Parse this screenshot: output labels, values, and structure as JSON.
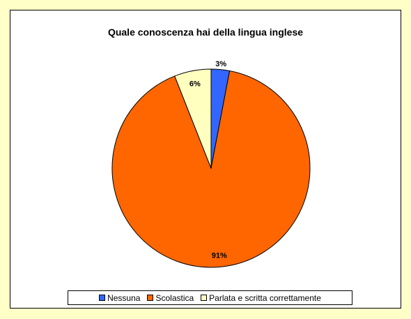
{
  "chart_data": {
    "type": "pie",
    "title": "Quale conoscenza hai della lingua inglese",
    "categories": [
      "Nessuna",
      "Scolastica",
      "Parlata e scritta correttamente"
    ],
    "values": [
      3,
      91,
      6
    ],
    "labels": [
      "3%",
      "91%",
      "6%"
    ],
    "colors": [
      "#3366ff",
      "#ff6600",
      "#ffffc0"
    ],
    "legend_position": "bottom"
  }
}
